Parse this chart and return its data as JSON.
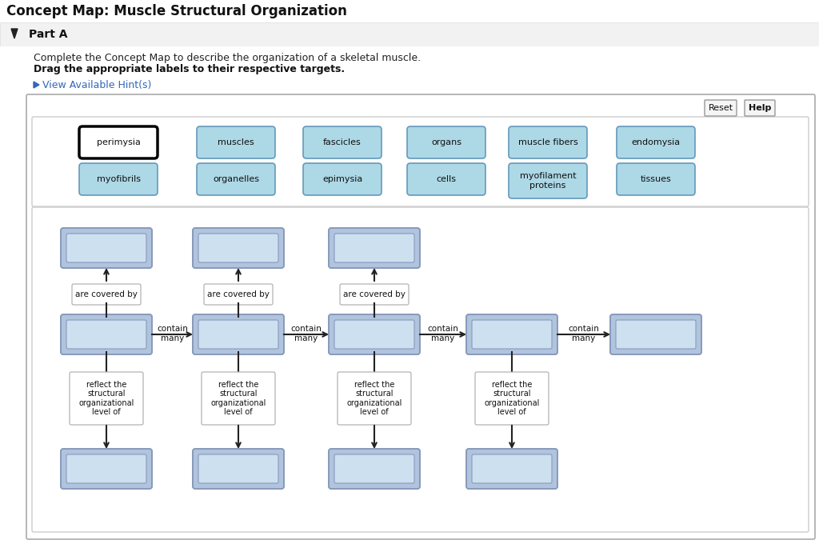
{
  "title": "Concept Map: Muscle Structural Organization",
  "part_label": "Part A",
  "instruction1": "Complete the Concept Map to describe the organization of a skeletal muscle.",
  "instruction2": "Drag the appropriate labels to their respective targets.",
  "hint_text": "View Available Hint(s)",
  "bg_color": "#ffffff",
  "header_bg": "#f8f8f8",
  "part_bg": "#eeeeee",
  "label_box_color": "#add8e6",
  "label_box_border": "#6699bb",
  "selected_box_color": "#ffffff",
  "selected_box_border": "#000000",
  "flow_box_outer_color": "#b0c4de",
  "flow_box_outer_border": "#8899bb",
  "flow_box_inner_color": "#cce0f0",
  "flow_box_inner_border": "#8899bb",
  "acb_box_color": "#ffffff",
  "acb_box_border": "#aaaaaa",
  "reflect_box_color": "#ffffff",
  "reflect_box_border": "#aaaaaa",
  "panel_border": "#aaaaaa",
  "label_items_row1": [
    "perimysia",
    "muscles",
    "fascicles",
    "organs",
    "muscle fibers",
    "endomysia"
  ],
  "label_items_row2": [
    "myofibrils",
    "organelles",
    "epimysia",
    "cells",
    "myofilament\nproteins",
    "tissues"
  ],
  "selected_label": "perimysia",
  "contain_labels": [
    "contain\nmany",
    "contain\nmany",
    "contain\nmany",
    "contain\nmany"
  ],
  "reflect_labels": [
    "reflect the\nstructural\norganizational\nlevel of",
    "reflect the\nstructural\norganizational\nlevel of",
    "reflect the\nstructural\norganizational\nlevel of",
    "reflect the\nstructural\norganizational\nlevel of"
  ],
  "figsize": [
    10.24,
    6.85
  ],
  "dpi": 100
}
